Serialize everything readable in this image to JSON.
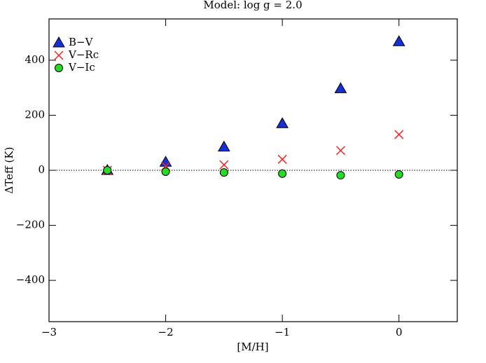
{
  "chart_data": {
    "type": "scatter",
    "title": "Model: log g = 2.0",
    "x_label": "[M/H]",
    "y_label": "ΔTeff (K)",
    "xlim": [
      -3,
      0.5
    ],
    "xticks": [
      {
        "value": -3,
        "label": "−3"
      },
      {
        "value": -2,
        "label": "−2"
      },
      {
        "value": -1,
        "label": "−1"
      },
      0
    ],
    "ylim": [
      -550,
      550
    ],
    "yticks": [
      {
        "value": -400,
        "label": "−400"
      },
      {
        "value": -200,
        "label": "−200"
      },
      0,
      200,
      400
    ],
    "reference_line": 0,
    "legend": "upper left",
    "series": [
      {
        "name": "B−V",
        "color": "#1530d8",
        "marker": "triangle",
        "x": [
          -2.5,
          -2,
          -1.5,
          -1,
          -0.5,
          0
        ],
        "values": [
          0,
          30,
          85,
          170,
          297,
          468
        ]
      },
      {
        "name": "V−Rc",
        "color": "#ff2020",
        "marker": "cross",
        "x": [
          -2.5,
          -2,
          -1.5,
          -1,
          -0.5,
          0
        ],
        "values": [
          0,
          15,
          20,
          40,
          72,
          130
        ]
      },
      {
        "name": "V−Ic",
        "color": "#22dd22",
        "marker": "circle",
        "x": [
          -2.5,
          -2,
          -1.5,
          -1,
          -0.5,
          0
        ],
        "values": [
          0,
          -5,
          -8,
          -12,
          -18,
          -15
        ]
      }
    ]
  }
}
